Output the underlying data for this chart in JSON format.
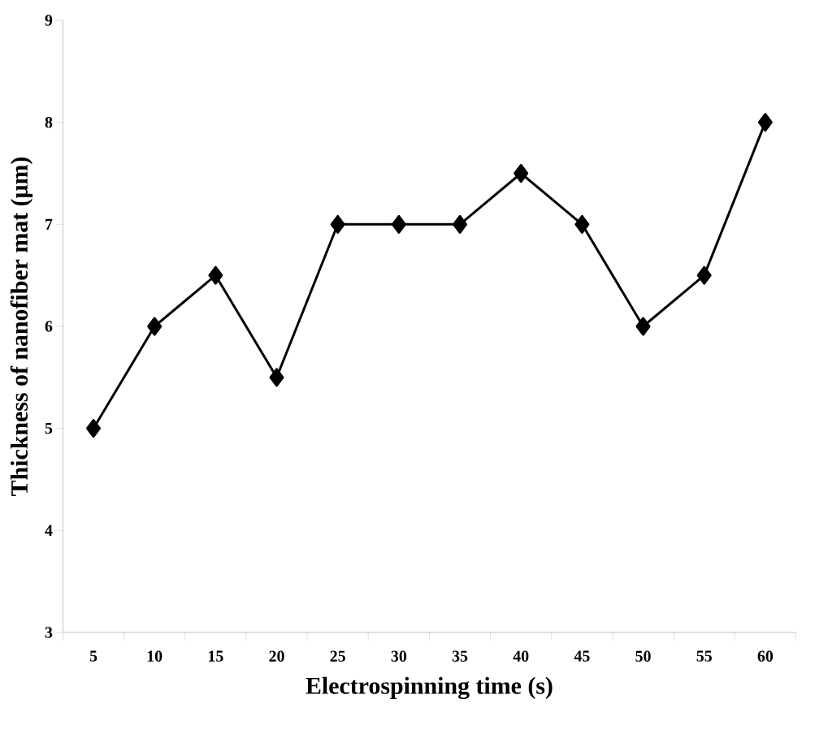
{
  "chart_data": {
    "type": "line",
    "xlabel": "Electrospinning time (s)",
    "ylabel": "Thickness of nanofiber mat (μm)",
    "categories": [
      "5",
      "10",
      "15",
      "20",
      "25",
      "30",
      "35",
      "40",
      "45",
      "50",
      "55",
      "60"
    ],
    "series": [
      {
        "color": "#000000",
        "values": [
          5,
          6,
          6.5,
          5.5,
          7,
          7,
          7,
          7.5,
          7,
          6,
          6.5,
          8
        ]
      }
    ],
    "ylim": [
      3,
      9
    ],
    "yticks": [
      3,
      4,
      5,
      6,
      7,
      8,
      9
    ],
    "marker": "diamond",
    "line_style": "solid"
  }
}
